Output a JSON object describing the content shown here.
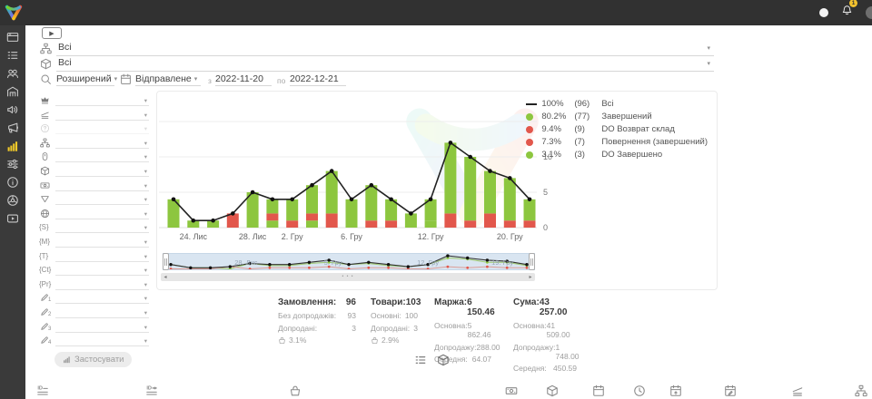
{
  "topbar": {
    "bell_badge": "1"
  },
  "sidebar": {
    "items": [
      {
        "icon": "card"
      },
      {
        "icon": "list"
      },
      {
        "icon": "users"
      },
      {
        "icon": "warehouse"
      },
      {
        "icon": "speaker"
      },
      {
        "icon": "megaphone"
      },
      {
        "icon": "chart",
        "active": true
      },
      {
        "icon": "sliders"
      },
      {
        "icon": "info"
      },
      {
        "icon": "wheel"
      },
      {
        "icon": "play-box"
      }
    ]
  },
  "toolbar": {
    "play_glyph": "▶",
    "rows": [
      {
        "icon": "sitemap",
        "value": "Всі"
      },
      {
        "icon": "box-3d",
        "value": "Всі"
      }
    ],
    "search": {
      "mode": "Розширений"
    },
    "date": {
      "field": "Відправлене",
      "from_label": "з",
      "from": "2022-11-20",
      "to_label": "по",
      "to": "2022-12-21"
    }
  },
  "filters": {
    "rows": [
      {
        "icon": "crown"
      },
      {
        "icon": "layers"
      },
      {
        "icon": "help-circle",
        "disabled": true
      },
      {
        "icon": "sitemap"
      },
      {
        "icon": "badge"
      },
      {
        "icon": "box-3d"
      },
      {
        "icon": "money"
      },
      {
        "icon": "funnel"
      },
      {
        "icon": "globe"
      },
      {
        "token": "{S}"
      },
      {
        "token": "{M}"
      },
      {
        "token": "{T}"
      },
      {
        "token": "{Ct}"
      },
      {
        "token": "{Pr}"
      },
      {
        "icon": "pencil",
        "sub": "1"
      },
      {
        "icon": "pencil",
        "sub": "2"
      },
      {
        "icon": "pencil",
        "sub": "3"
      },
      {
        "icon": "pencil",
        "sub": "4"
      }
    ],
    "apply_label": "Застосувати"
  },
  "chart_data": {
    "type": "bar",
    "legend": [
      {
        "swatch": "line",
        "color": "#222222",
        "percent": "100%",
        "count": "(96)",
        "label": "Всі"
      },
      {
        "swatch": "dot",
        "color": "#8dc63f",
        "percent": "80.2%",
        "count": "(77)",
        "label": "Завершений"
      },
      {
        "swatch": "dot",
        "color": "#e2574c",
        "percent": "9.4%",
        "count": "(9)",
        "label": "DO Возврат склад"
      },
      {
        "swatch": "dot",
        "color": "#e2574c",
        "percent": "7.3%",
        "count": "(7)",
        "label": "Повернення (завершений)"
      },
      {
        "swatch": "dot",
        "color": "#8dc63f",
        "percent": "3.1%",
        "count": "(3)",
        "label": "DO Завершено"
      }
    ],
    "series_names": {
      "total": "Всі",
      "completed": "Завершений",
      "vozvrat": "DO Возврат склад",
      "povernennya": "Повернення (завершений)",
      "do_done": "DO Завершено"
    },
    "bars": [
      {
        "completed": 4
      },
      {
        "completed": 1
      },
      {
        "completed": 1
      },
      {
        "vozvrat": 2
      },
      {
        "completed": 5
      },
      {
        "do_done": 1,
        "vozvrat": 1,
        "completed": 2
      },
      {
        "vozvrat": 1,
        "completed": 3
      },
      {
        "do_done": 1,
        "vozvrat": 1,
        "completed": 4
      },
      {
        "vozvrat": 2,
        "completed": 6
      },
      {
        "completed": 4
      },
      {
        "vozvrat": 1,
        "completed": 5
      },
      {
        "vozvrat": 1,
        "completed": 3
      },
      {
        "completed": 2
      },
      {
        "do_done": 1,
        "completed": 3
      },
      {
        "povernennya": 2,
        "completed": 10
      },
      {
        "povernennya": 1,
        "completed": 9
      },
      {
        "povernennya": 2,
        "completed": 6
      },
      {
        "povernennya": 1,
        "completed": 6
      },
      {
        "povernennya": 1,
        "completed": 3
      }
    ],
    "line_total": [
      4,
      1,
      1,
      2,
      5,
      4,
      4,
      6,
      8,
      4,
      6,
      4,
      2,
      4,
      12,
      10,
      8,
      7,
      4
    ],
    "x_ticks": [
      {
        "index": 1,
        "label": "24. Лис"
      },
      {
        "index": 4,
        "label": "28. Лис"
      },
      {
        "index": 6,
        "label": "2. Гру"
      },
      {
        "index": 9,
        "label": "6. Гру"
      },
      {
        "index": 13,
        "label": "12. Гру"
      },
      {
        "index": 17,
        "label": "20. Гру"
      }
    ],
    "y_ticks": [
      "0",
      "5",
      "10"
    ],
    "ylim": [
      0,
      15.5
    ],
    "grid_values": [
      5,
      10,
      15
    ],
    "colors": {
      "green": "#8dc63f",
      "red": "#e2574c",
      "line": "#222222",
      "grid": "#ededed",
      "axis": "#e0e0e0"
    },
    "navigator": {
      "labels": [
        {
          "pos": 0.22,
          "label": "28. Лис"
        },
        {
          "pos": 0.46,
          "label": "5. Гру"
        },
        {
          "pos": 0.71,
          "label": "12. Гру"
        },
        {
          "pos": 0.91,
          "label": "19. Гру"
        }
      ]
    }
  },
  "stats": {
    "columns": [
      {
        "title": "Замовлення:",
        "value": "96",
        "rows": [
          {
            "label": "Без допродажів:",
            "value": "93"
          },
          {
            "label": "Допродані:",
            "value": "3"
          }
        ],
        "basket_percent": "3.1%"
      },
      {
        "title": "Товари:",
        "value": "103",
        "rows": [
          {
            "label": "Основні:",
            "value": "100"
          },
          {
            "label": "Допродані:",
            "value": "3"
          }
        ],
        "basket_percent": "2.9%"
      },
      {
        "title": "Маржа:",
        "value": "6 150.46",
        "rows": [
          {
            "label": "Основна:",
            "value": "5 862.46"
          },
          {
            "label": "Допродажу:",
            "value": "288.00"
          },
          {
            "label": "Середня:",
            "value": "64.07"
          }
        ]
      },
      {
        "title": "Сума:",
        "value": "43 257.00",
        "rows": [
          {
            "label": "Основна:",
            "value": "41 509.00"
          },
          {
            "label": "Допродажу:",
            "value": "1 748.00"
          },
          {
            "label": "Середня:",
            "value": "450.59"
          }
        ]
      }
    ]
  },
  "view_toggles": [
    {
      "icon": "list"
    },
    {
      "icon": "box-3d"
    }
  ],
  "footer": {
    "icons": [
      "id-lines",
      "id-link",
      "basket",
      "money",
      "box-3d",
      "calendar",
      "clock",
      "calendar-up",
      "calendar-edit",
      "layers",
      "sitemap"
    ]
  }
}
